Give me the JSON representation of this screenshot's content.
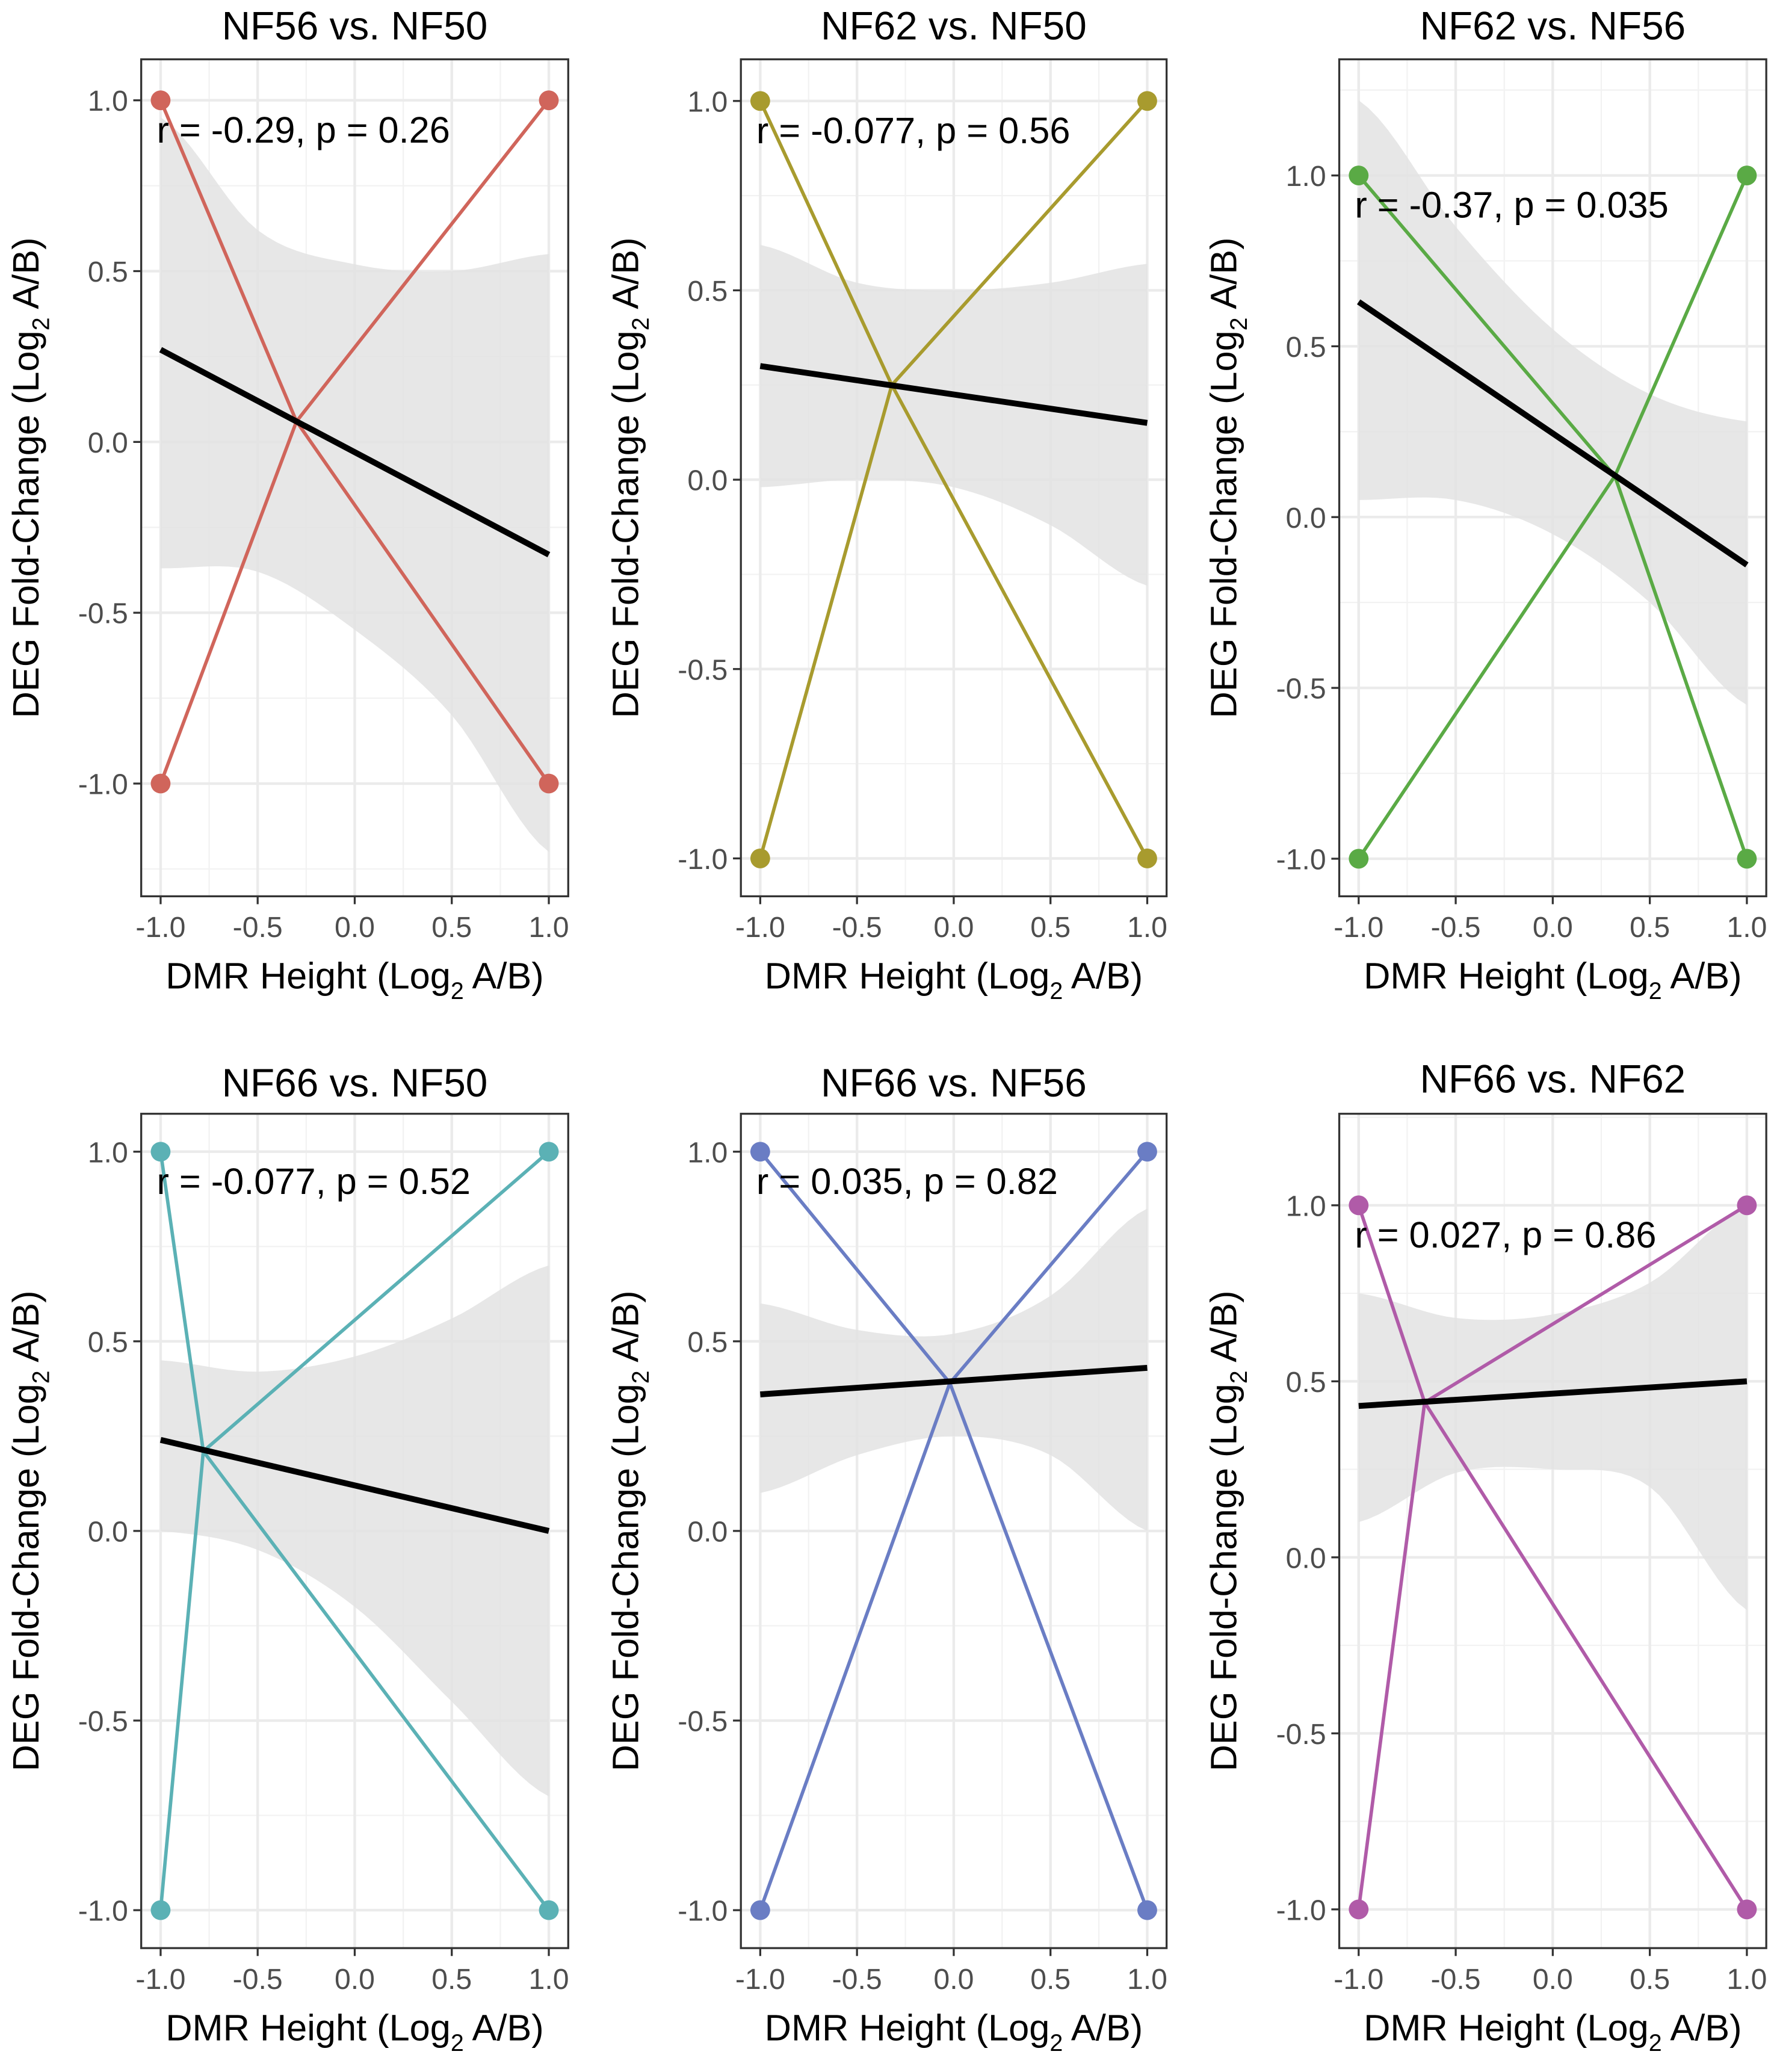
{
  "chart_data": {
    "type": "line",
    "layout": "2x3 facets",
    "xlabel": {
      "pre": "DMR Height (Log",
      "sub": "2",
      "post": " A/B)"
    },
    "ylabel": {
      "pre": "DEG Fold-Change (Log",
      "sub": "2",
      "post": " A/B)"
    },
    "grid": true,
    "fit_color": "#000000",
    "band_color": "#e3e3e3",
    "panels": [
      {
        "title": "NF56 vs. NF50",
        "annotation": "r = -0.29, p = 0.26",
        "color": "#D0655B",
        "xlim": [
          -1.1,
          1.1
        ],
        "ylim": [
          -1.33,
          1.12
        ],
        "xticks": [
          -1,
          -0.5,
          0,
          0.5,
          1
        ],
        "xtick_labels": [
          "-1.0",
          "-0.5",
          "0.0",
          "0.5",
          "1.0"
        ],
        "yticks": [
          -1,
          -0.5,
          0,
          0.5,
          1
        ],
        "ytick_labels": [
          "-1.0",
          "-0.5",
          "0.0",
          "0.5",
          "1.0"
        ],
        "series": [
          {
            "x": [
              -1,
              -0.3,
              1
            ],
            "y": [
              1,
              0.06,
              -1
            ]
          },
          {
            "x": [
              -1,
              -0.3,
              1
            ],
            "y": [
              -1,
              0.06,
              1
            ]
          }
        ],
        "points": {
          "x": [
            -1,
            1,
            -1,
            1
          ],
          "y": [
            1,
            1,
            -1,
            -1
          ]
        },
        "fit": {
          "x": [
            -1,
            1
          ],
          "y": [
            0.27,
            -0.33
          ]
        },
        "band": {
          "x": [
            -1,
            -0.5,
            0,
            0.5,
            1
          ],
          "upper": [
            0.95,
            0.62,
            0.52,
            0.5,
            0.55
          ],
          "lower": [
            -0.37,
            -0.38,
            -0.55,
            -0.8,
            -1.2
          ]
        }
      },
      {
        "title": "NF62 vs. NF50",
        "annotation": "r = -0.077, p = 0.56",
        "color": "#A89B2E",
        "xlim": [
          -1.1,
          1.1
        ],
        "ylim": [
          -1.1,
          1.11
        ],
        "xticks": [
          -1,
          -0.5,
          0,
          0.5,
          1
        ],
        "xtick_labels": [
          "-1.0",
          "-0.5",
          "0.0",
          "0.5",
          "1.0"
        ],
        "yticks": [
          -1,
          -0.5,
          0,
          0.5,
          1
        ],
        "ytick_labels": [
          "-1.0",
          "-0.5",
          "0.0",
          "0.5",
          "1.0"
        ],
        "series": [
          {
            "x": [
              -1,
              -0.32,
              1
            ],
            "y": [
              1,
              0.25,
              -1
            ]
          },
          {
            "x": [
              -1,
              -0.32,
              1
            ],
            "y": [
              -1,
              0.25,
              1
            ]
          }
        ],
        "points": {
          "x": [
            -1,
            1,
            -1,
            1
          ],
          "y": [
            1,
            1,
            -1,
            -1
          ]
        },
        "fit": {
          "x": [
            -1,
            1
          ],
          "y": [
            0.3,
            0.15
          ]
        },
        "band": {
          "x": [
            -1,
            -0.5,
            0,
            0.5,
            1
          ],
          "upper": [
            0.62,
            0.52,
            0.5,
            0.52,
            0.57
          ],
          "lower": [
            -0.02,
            0.0,
            -0.02,
            -0.12,
            -0.28
          ]
        }
      },
      {
        "title": "NF62 vs. NF56",
        "annotation": "r = -0.37, p = 0.035",
        "color": "#5AAA45",
        "xlim": [
          -1.1,
          1.1
        ],
        "ylim": [
          -1.11,
          1.34
        ],
        "xticks": [
          -1,
          -0.5,
          0,
          0.5,
          1
        ],
        "xtick_labels": [
          "-1.0",
          "-0.5",
          "0.0",
          "0.5",
          "1.0"
        ],
        "yticks": [
          -1,
          -0.5,
          0,
          0.5,
          1
        ],
        "ytick_labels": [
          "-1.0",
          "-0.5",
          "0.0",
          "0.5",
          "1.0"
        ],
        "series": [
          {
            "x": [
              -1,
              0.32,
              1
            ],
            "y": [
              1,
              0.12,
              -1
            ]
          },
          {
            "x": [
              -1,
              0.32,
              1
            ],
            "y": [
              -1,
              0.12,
              1
            ]
          }
        ],
        "points": {
          "x": [
            -1,
            1,
            -1,
            1
          ],
          "y": [
            1,
            1,
            -1,
            -1
          ]
        },
        "fit": {
          "x": [
            -1,
            1
          ],
          "y": [
            0.63,
            -0.14
          ]
        },
        "band": {
          "x": [
            -1,
            -0.5,
            0,
            0.5,
            1
          ],
          "upper": [
            1.22,
            0.85,
            0.55,
            0.36,
            0.28
          ],
          "lower": [
            0.05,
            0.05,
            -0.05,
            -0.25,
            -0.55
          ]
        }
      },
      {
        "title": "NF66 vs. NF50",
        "annotation": "r = -0.077, p = 0.52",
        "color": "#5BB1B5",
        "xlim": [
          -1.1,
          1.1
        ],
        "ylim": [
          -1.1,
          1.1
        ],
        "xticks": [
          -1,
          -0.5,
          0,
          0.5,
          1
        ],
        "xtick_labels": [
          "-1.0",
          "-0.5",
          "0.0",
          "0.5",
          "1.0"
        ],
        "yticks": [
          -1,
          -0.5,
          0,
          0.5,
          1
        ],
        "ytick_labels": [
          "-1.0",
          "-0.5",
          "0.0",
          "0.5",
          "1.0"
        ],
        "series": [
          {
            "x": [
              -1,
              -0.78,
              1
            ],
            "y": [
              1,
              0.21,
              -1
            ]
          },
          {
            "x": [
              -1,
              -0.78,
              1
            ],
            "y": [
              -1,
              0.21,
              1
            ]
          }
        ],
        "points": {
          "x": [
            -1,
            1,
            -1,
            1
          ],
          "y": [
            1,
            1,
            -1,
            -1
          ]
        },
        "fit": {
          "x": [
            -1,
            1
          ],
          "y": [
            0.24,
            0.0
          ]
        },
        "band": {
          "x": [
            -1,
            -0.5,
            0,
            0.5,
            1
          ],
          "upper": [
            0.45,
            0.42,
            0.46,
            0.56,
            0.7
          ],
          "lower": [
            0.0,
            -0.05,
            -0.2,
            -0.45,
            -0.7
          ]
        }
      },
      {
        "title": "NF66 vs. NF56",
        "annotation": "r = 0.035, p = 0.82",
        "color": "#6A7DC4",
        "xlim": [
          -1.1,
          1.1
        ],
        "ylim": [
          -1.1,
          1.1
        ],
        "xticks": [
          -1,
          -0.5,
          0,
          0.5,
          1
        ],
        "xtick_labels": [
          "-1.0",
          "-0.5",
          "0.0",
          "0.5",
          "1.0"
        ],
        "yticks": [
          -1,
          -0.5,
          0,
          0.5,
          1
        ],
        "ytick_labels": [
          "-1.0",
          "-0.5",
          "0.0",
          "0.5",
          "1.0"
        ],
        "series": [
          {
            "x": [
              -1,
              -0.02,
              1
            ],
            "y": [
              1,
              0.39,
              -1
            ]
          },
          {
            "x": [
              -1,
              -0.02,
              1
            ],
            "y": [
              -1,
              0.39,
              1
            ]
          }
        ],
        "points": {
          "x": [
            -1,
            1,
            -1,
            1
          ],
          "y": [
            1,
            1,
            -1,
            -1
          ]
        },
        "fit": {
          "x": [
            -1,
            1
          ],
          "y": [
            0.36,
            0.43
          ]
        },
        "band": {
          "x": [
            -1,
            -0.5,
            0,
            0.5,
            1
          ],
          "upper": [
            0.6,
            0.53,
            0.52,
            0.62,
            0.85
          ],
          "lower": [
            0.1,
            0.2,
            0.25,
            0.2,
            0.0
          ]
        }
      },
      {
        "title": "NF66 vs. NF62",
        "annotation": "r = 0.027, p = 0.86",
        "color": "#B05BA8",
        "xlim": [
          -1.1,
          1.1
        ],
        "ylim": [
          -1.11,
          1.26
        ],
        "xticks": [
          -1,
          -0.5,
          0,
          0.5,
          1
        ],
        "xtick_labels": [
          "-1.0",
          "-0.5",
          "0.0",
          "0.5",
          "1.0"
        ],
        "yticks": [
          -1,
          -0.5,
          0,
          0.5,
          1
        ],
        "ytick_labels": [
          "-1.0",
          "-0.5",
          "0.0",
          "0.5",
          "1.0"
        ],
        "series": [
          {
            "x": [
              -1,
              -0.66,
              1
            ],
            "y": [
              1,
              0.44,
              -1
            ]
          },
          {
            "x": [
              -1,
              -0.66,
              1
            ],
            "y": [
              -1,
              0.44,
              1
            ]
          }
        ],
        "points": {
          "x": [
            -1,
            1,
            -1,
            1
          ],
          "y": [
            1,
            1,
            -1,
            -1
          ]
        },
        "fit": {
          "x": [
            -1,
            1
          ],
          "y": [
            0.43,
            0.5
          ]
        },
        "band": {
          "x": [
            -1,
            -0.5,
            0,
            0.5,
            1
          ],
          "upper": [
            0.75,
            0.68,
            0.69,
            0.78,
            1.0
          ],
          "lower": [
            0.1,
            0.24,
            0.25,
            0.2,
            -0.15
          ]
        }
      }
    ]
  }
}
